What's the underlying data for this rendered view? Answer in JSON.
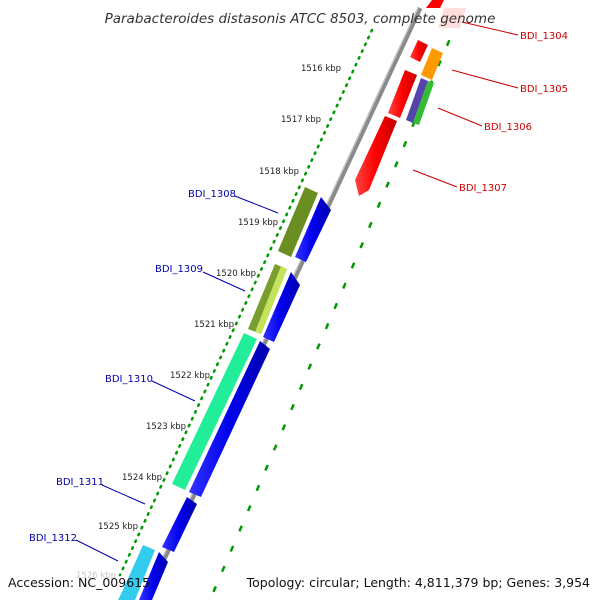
{
  "title": "Parabacteroides distasonis ATCC 8503, complete genome",
  "footer": {
    "accession": "Accession: NC_009615",
    "topology": "Topology: circular; Length: 4,811,379 bp; Genes: 3,954"
  },
  "ruler_labels": [
    "1516 kbp",
    "1517 kbp",
    "1518 kbp",
    "1519 kbp",
    "1520 kbp",
    "1521 kbp",
    "1522 kbp",
    "1523 kbp",
    "1524 kbp",
    "1525 kbp"
  ],
  "ruler_faint_label": "1526 kbp",
  "colors": {
    "forward_label": "#cc0000",
    "reverse_label": "#0000aa",
    "backbone": "#888888",
    "ruler": "#009900"
  },
  "genes": [
    {
      "name": "BDI_1304",
      "strand": "forward",
      "color": "#ff0000"
    },
    {
      "name": "BDI_1305",
      "strand": "forward",
      "color": "#ff9900"
    },
    {
      "name": "BDI_1306",
      "strand": "forward",
      "color": "#5544aa"
    },
    {
      "name": "BDI_1307",
      "strand": "forward",
      "color": "#ff0000"
    },
    {
      "name": "BDI_1308",
      "strand": "reverse",
      "color": "#6b8e23"
    },
    {
      "name": "BDI_1309",
      "strand": "reverse",
      "color": "#8fb43a"
    },
    {
      "name": "BDI_1310",
      "strand": "reverse",
      "color": "#22ee99"
    },
    {
      "name": "BDI_1311",
      "strand": "reverse",
      "color": "#0000ee"
    },
    {
      "name": "BDI_1312",
      "strand": "reverse",
      "color": "#33ccee"
    }
  ]
}
